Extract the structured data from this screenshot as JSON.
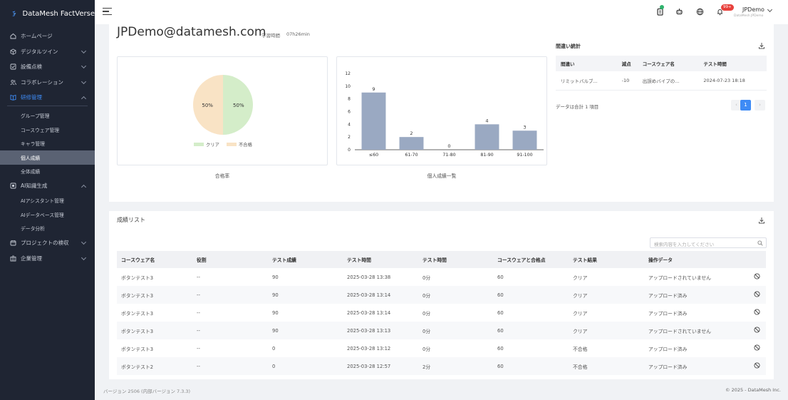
{
  "app": {
    "name": "DataMesh FactVerse"
  },
  "sidebar": {
    "items": [
      {
        "label": "ホームページ",
        "icon": "home-icon",
        "chevron": false
      },
      {
        "label": "デジタルツイン",
        "icon": "cube-icon",
        "chevron": true
      },
      {
        "label": "設備点検",
        "icon": "checklist-icon",
        "chevron": true
      },
      {
        "label": "コラボレーション",
        "icon": "users-icon",
        "chevron": true
      },
      {
        "label": "研修管理",
        "icon": "book-icon",
        "chevron": true,
        "open": true
      }
    ],
    "training_sub": [
      "グループ管理",
      "コースウェア管理",
      "キャラ管理",
      "個人成績",
      "全体成績"
    ],
    "active_sub": "個人成績",
    "ai": {
      "label": "AI知識生成",
      "icon": "ai-icon"
    },
    "ai_sub": [
      "AIアシスタント管理",
      "AIデータベース管理",
      "データ分析"
    ],
    "tail": [
      {
        "label": "プロジェクトの検収",
        "icon": "project-icon"
      },
      {
        "label": "企業管理",
        "icon": "building-icon"
      }
    ]
  },
  "header": {
    "notification_count": "99+",
    "user_name": "JPDemo",
    "user_sub": "DataMesh JPDemo"
  },
  "profile": {
    "email": "JPDemo@datamesh.com",
    "study_time_label": "学習時間",
    "study_time_value": "07h26min"
  },
  "pie": {
    "caption": "合格率",
    "legend": [
      "クリア",
      "不合格"
    ],
    "colors": {
      "clear": "#d4edc9",
      "fail": "#f9e3c5"
    }
  },
  "chart_data": {
    "type": "bar",
    "categories": [
      "≤60",
      "61-70",
      "71-80",
      "81-90",
      "91-100"
    ],
    "values": [
      9,
      2,
      0,
      4,
      3
    ],
    "ylim": [
      0,
      12
    ],
    "yticks": [
      0,
      2,
      4,
      6,
      8,
      10,
      12
    ],
    "bar_color": "#9aa9c2",
    "pie": {
      "type": "pie",
      "labels": [
        "クリア",
        "不合格"
      ],
      "values": [
        50,
        50
      ],
      "value_labels": [
        "50%",
        "50%"
      ]
    }
  },
  "bar": {
    "caption": "個人成績一覧"
  },
  "errors": {
    "title": "間違い統計",
    "headers": [
      "間違い",
      "減点",
      "コースウェア名",
      "テスト時間"
    ],
    "rows": [
      [
        "リミットバルブ...",
        "-10",
        "出誤めバイプの...",
        "2024-07-23 18:18"
      ]
    ],
    "total": "データは合計 1 項目",
    "page": "1"
  },
  "results": {
    "title": "成績リスト",
    "search_placeholder": "検索内容を入力してください",
    "headers": [
      "コースウェア名",
      "役割",
      "テスト成績",
      "テスト時間",
      "テスト時間",
      "コースウェアと合格点",
      "テスト結果",
      "操作データ"
    ],
    "rows": [
      [
        "ボタンテスト3",
        "--",
        "90",
        "2025-03-28 13:38",
        "0分",
        "60",
        "クリア",
        "アップロードされていません"
      ],
      [
        "ボタンテスト3",
        "--",
        "90",
        "2025-03-28 13:14",
        "0分",
        "60",
        "クリア",
        "アップロード済み"
      ],
      [
        "ボタンテスト3",
        "--",
        "90",
        "2025-03-28 13:14",
        "0分",
        "60",
        "クリア",
        "アップロード済み"
      ],
      [
        "ボタンテスト3",
        "--",
        "90",
        "2025-03-28 13:13",
        "0分",
        "60",
        "クリア",
        "アップロードされていません"
      ],
      [
        "ボタンテスト3",
        "--",
        "0",
        "2025-03-28 13:12",
        "0分",
        "60",
        "不合格",
        "アップロード済み"
      ],
      [
        "ボタンテスト2",
        "--",
        "0",
        "2025-03-28 12:57",
        "2分",
        "60",
        "不合格",
        "アップロード済み"
      ]
    ]
  },
  "footer": {
    "version": "バージョン 2506 (内部バージョン 7.3.3)",
    "copyright": "© 2025 - DataMesh Inc."
  }
}
